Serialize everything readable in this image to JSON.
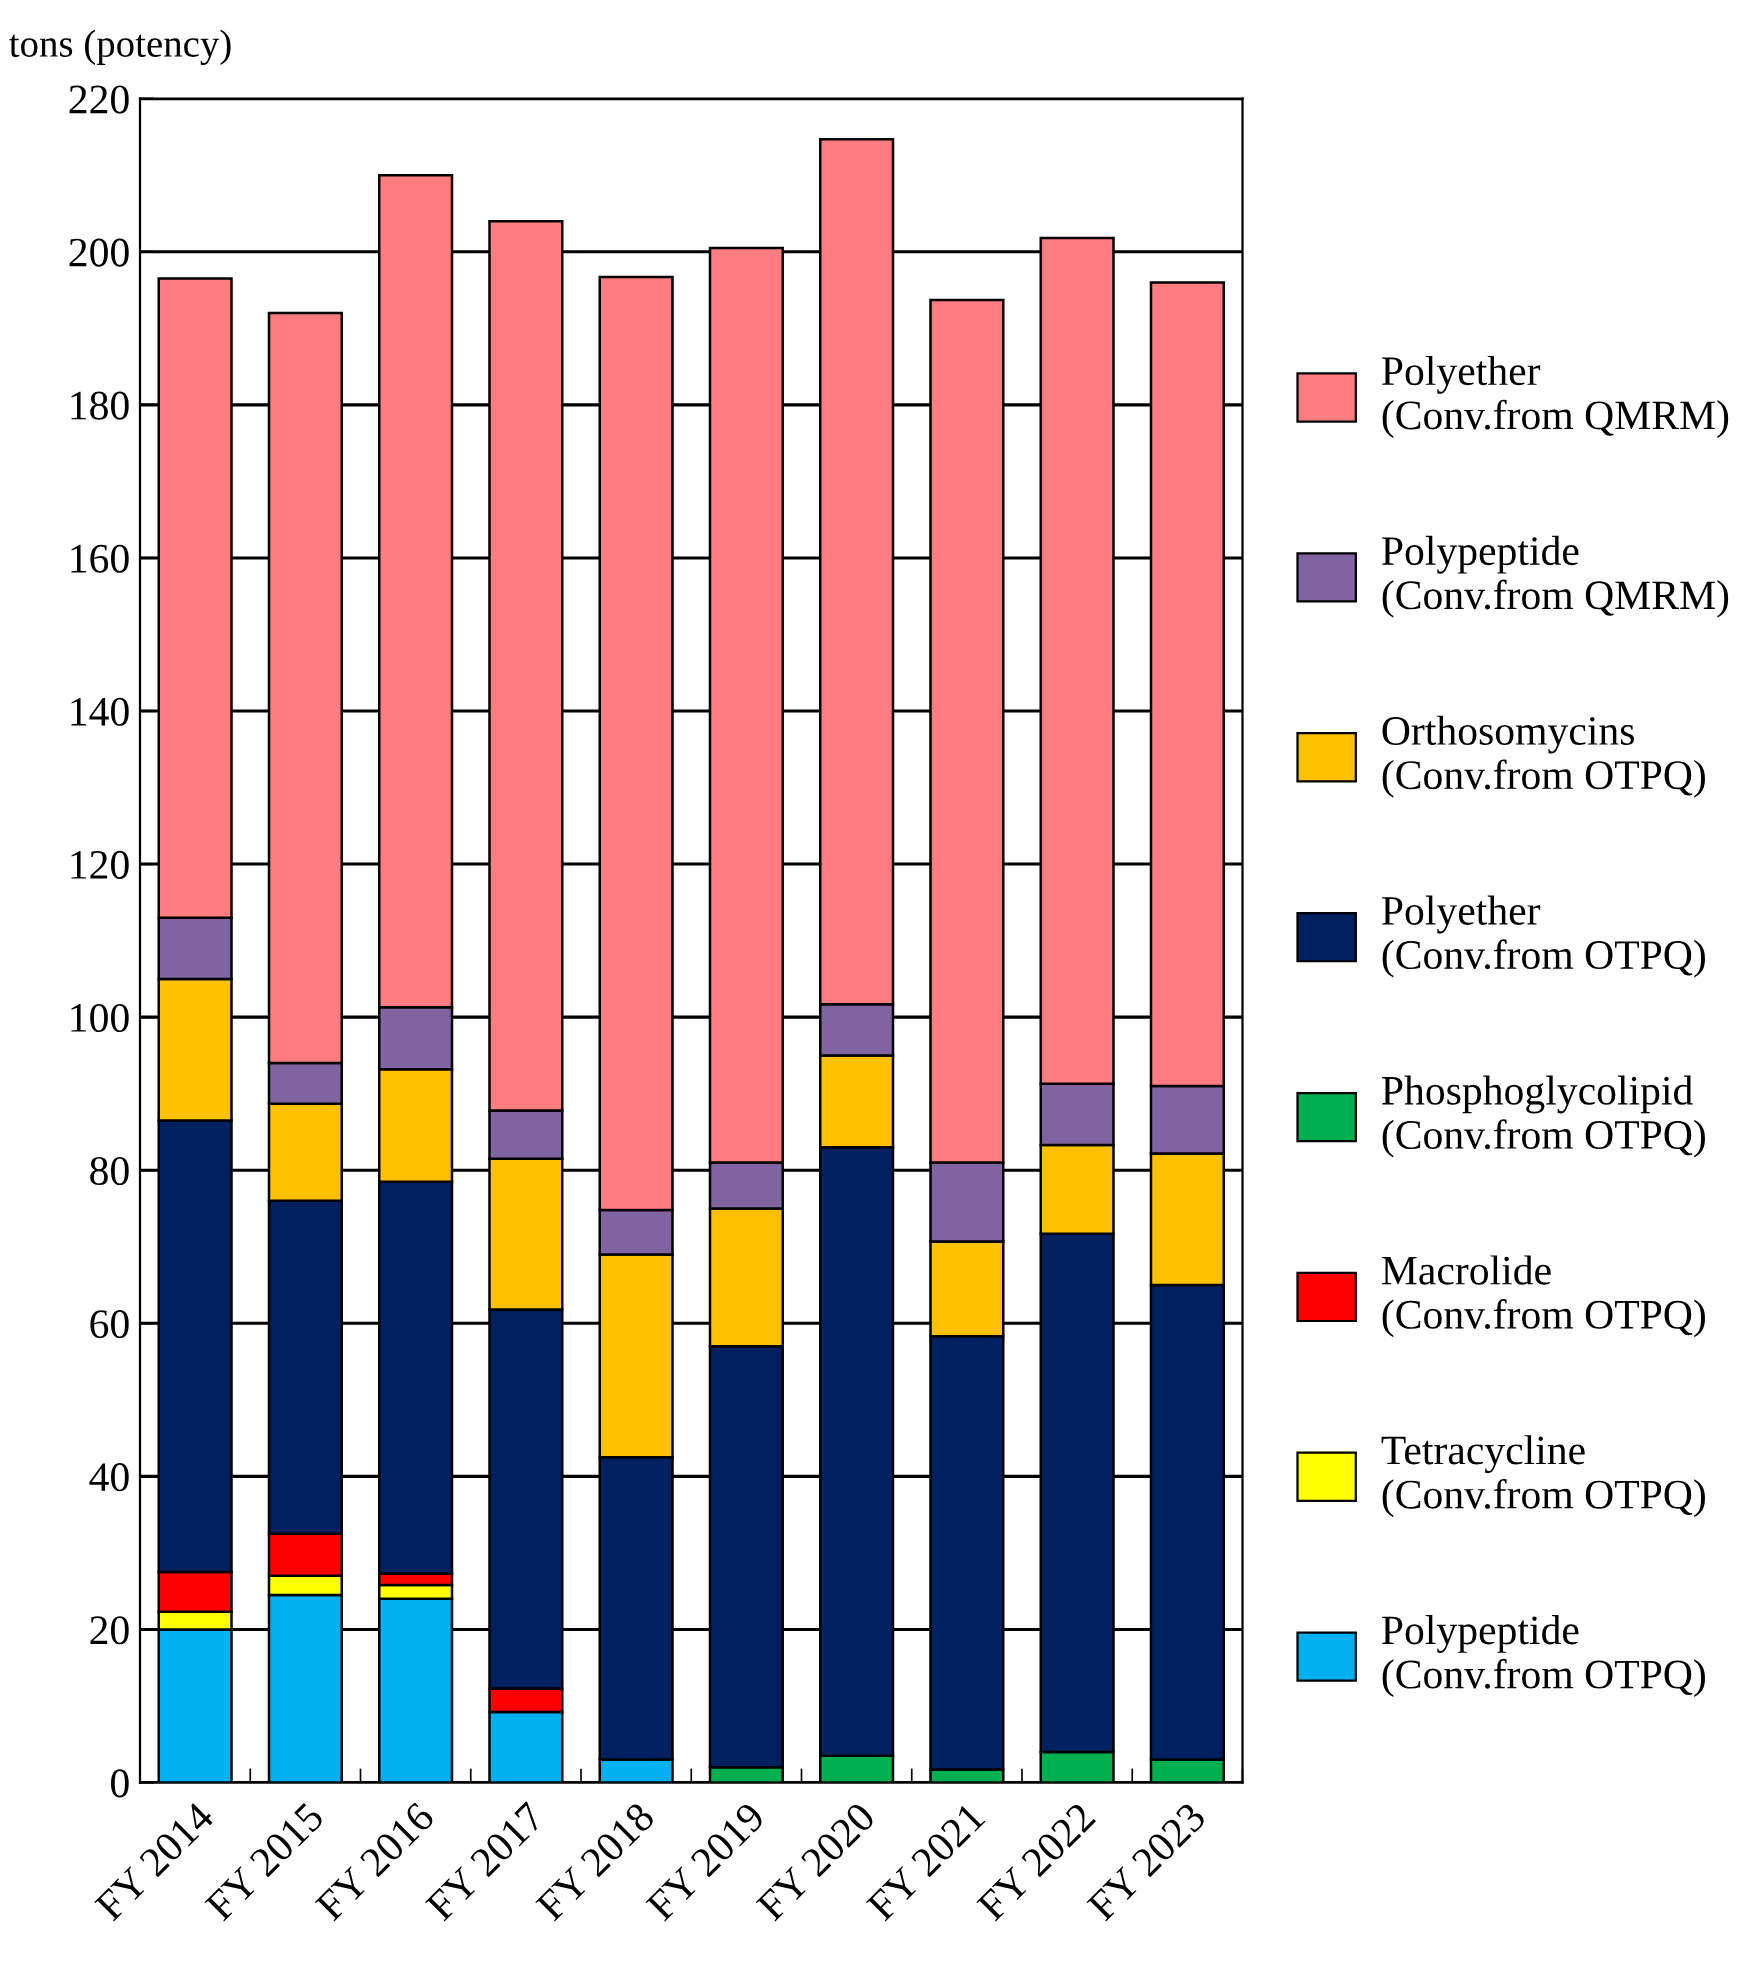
{
  "chart_data": {
    "type": "bar",
    "stacked": true,
    "ylabel": "tons (potency)",
    "categories": [
      "FY 2014",
      "FY 2015",
      "FY 2016",
      "FY 2017",
      "FY 2018",
      "FY 2019",
      "FY 2020",
      "FY 2021",
      "FY 2022",
      "FY 2023"
    ],
    "series": [
      {
        "name": "Polypeptide\n(Conv.from OTPQ)",
        "color": "#00b0f0",
        "values": [
          20,
          24.5,
          24,
          9.2,
          3,
          null,
          null,
          null,
          null,
          null
        ]
      },
      {
        "name": "Tetracycline\n(Conv.from OTPQ)",
        "color": "#ffff00",
        "values": [
          2.3,
          2.5,
          1.8,
          null,
          null,
          null,
          null,
          null,
          null,
          null
        ]
      },
      {
        "name": "Macrolide\n(Conv.from OTPQ)",
        "color": "#ff0000",
        "values": [
          5.2,
          5.5,
          1.5,
          3.1,
          null,
          null,
          null,
          null,
          null,
          null
        ]
      },
      {
        "name": "Phosphoglycolipid\n(Conv.from OTPQ)",
        "color": "#00b050",
        "values": [
          null,
          null,
          null,
          null,
          null,
          2,
          3.5,
          1.7,
          4,
          3
        ]
      },
      {
        "name": "Polyether\n(Conv.from OTPQ)",
        "color": "#002060",
        "values": [
          59,
          43.5,
          51.2,
          49.5,
          39.5,
          55,
          79.5,
          56.6,
          67.7,
          62
        ]
      },
      {
        "name": "Orthosomycins\n(Conv.from OTPQ)",
        "color": "#ffc000",
        "values": [
          18.5,
          12.7,
          14.7,
          19.7,
          26.5,
          18,
          12,
          12.4,
          11.6,
          17.2
        ]
      },
      {
        "name": "Polypeptide\n(Conv.from QMRM)",
        "color": "#8064a2",
        "values": [
          8,
          5.3,
          8.1,
          6.3,
          5.8,
          6,
          6.7,
          10.3,
          8,
          8.8
        ]
      },
      {
        "name": "Polyether\n(Conv.from QMRM)",
        "color": "#ff7c80",
        "values": [
          83.5,
          98,
          108.7,
          116.2,
          121.9,
          119.5,
          113,
          112.7,
          110.5,
          105
        ]
      }
    ],
    "ylim": [
      0,
      220
    ],
    "yticks": [
      0,
      20,
      40,
      60,
      80,
      100,
      120,
      140,
      160,
      180,
      200,
      220
    ],
    "grid": "y",
    "legend": "right"
  }
}
